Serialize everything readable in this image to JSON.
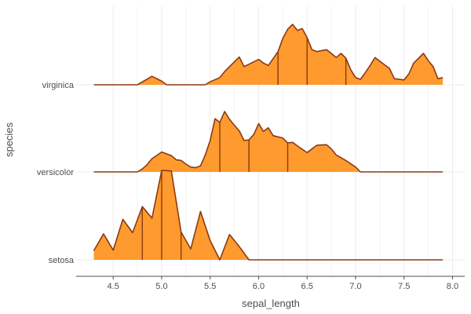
{
  "chart_data": {
    "type": "ridgeline",
    "xlabel": "sepal_length",
    "ylabel": "species",
    "xlim": [
      4.3,
      7.9
    ],
    "x_ticks": [
      "4.5",
      "5.0",
      "5.5",
      "6.0",
      "6.5",
      "7.0",
      "7.5",
      "8.0"
    ],
    "grid": true,
    "colors": {
      "fill": "#ff9a2e",
      "line": "#8b3a12",
      "grid": "#ebebeb",
      "axis": "#4d4d4d"
    },
    "categories": [
      "virginica",
      "versicolor",
      "setosa"
    ],
    "ridges": [
      {
        "name": "virginica",
        "quartiles": [
          6.2,
          6.5,
          6.9
        ],
        "points": [
          [
            4.3,
            0
          ],
          [
            4.75,
            0
          ],
          [
            4.9,
            0.14
          ],
          [
            5.0,
            0.06
          ],
          [
            5.05,
            0
          ],
          [
            5.45,
            0
          ],
          [
            5.5,
            0.05
          ],
          [
            5.6,
            0.12
          ],
          [
            5.65,
            0.22
          ],
          [
            5.75,
            0.38
          ],
          [
            5.8,
            0.46
          ],
          [
            5.85,
            0.3
          ],
          [
            5.9,
            0.34
          ],
          [
            6.0,
            0.42
          ],
          [
            6.05,
            0.36
          ],
          [
            6.1,
            0.32
          ],
          [
            6.2,
            0.55
          ],
          [
            6.25,
            0.77
          ],
          [
            6.3,
            0.92
          ],
          [
            6.35,
            1.0
          ],
          [
            6.4,
            0.9
          ],
          [
            6.45,
            0.93
          ],
          [
            6.5,
            0.78
          ],
          [
            6.55,
            0.58
          ],
          [
            6.6,
            0.55
          ],
          [
            6.7,
            0.58
          ],
          [
            6.75,
            0.52
          ],
          [
            6.8,
            0.45
          ],
          [
            6.85,
            0.52
          ],
          [
            6.9,
            0.44
          ],
          [
            6.95,
            0.25
          ],
          [
            7.0,
            0.12
          ],
          [
            7.05,
            0.09
          ],
          [
            7.1,
            0.2
          ],
          [
            7.15,
            0.32
          ],
          [
            7.2,
            0.45
          ],
          [
            7.3,
            0.33
          ],
          [
            7.35,
            0.27
          ],
          [
            7.4,
            0.1
          ],
          [
            7.5,
            0.08
          ],
          [
            7.55,
            0.18
          ],
          [
            7.6,
            0.36
          ],
          [
            7.7,
            0.52
          ],
          [
            7.75,
            0.4
          ],
          [
            7.8,
            0.3
          ],
          [
            7.85,
            0.1
          ],
          [
            7.9,
            0.12
          ]
        ]
      },
      {
        "name": "versicolor",
        "quartiles": [
          5.6,
          5.9,
          6.3
        ],
        "points": [
          [
            4.3,
            0
          ],
          [
            4.75,
            0
          ],
          [
            4.8,
            0.05
          ],
          [
            4.85,
            0.12
          ],
          [
            4.9,
            0.22
          ],
          [
            5.0,
            0.33
          ],
          [
            5.1,
            0.27
          ],
          [
            5.15,
            0.2
          ],
          [
            5.2,
            0.19
          ],
          [
            5.25,
            0.13
          ],
          [
            5.3,
            0.08
          ],
          [
            5.35,
            0.07
          ],
          [
            5.4,
            0.1
          ],
          [
            5.45,
            0.28
          ],
          [
            5.5,
            0.52
          ],
          [
            5.55,
            0.88
          ],
          [
            5.6,
            0.82
          ],
          [
            5.65,
            1.0
          ],
          [
            5.7,
            0.87
          ],
          [
            5.75,
            0.77
          ],
          [
            5.8,
            0.68
          ],
          [
            5.85,
            0.52
          ],
          [
            5.9,
            0.53
          ],
          [
            5.95,
            0.62
          ],
          [
            6.0,
            0.8
          ],
          [
            6.05,
            0.67
          ],
          [
            6.1,
            0.73
          ],
          [
            6.15,
            0.6
          ],
          [
            6.2,
            0.58
          ],
          [
            6.25,
            0.56
          ],
          [
            6.3,
            0.48
          ],
          [
            6.35,
            0.49
          ],
          [
            6.4,
            0.43
          ],
          [
            6.5,
            0.32
          ],
          [
            6.55,
            0.38
          ],
          [
            6.6,
            0.44
          ],
          [
            6.7,
            0.45
          ],
          [
            6.75,
            0.38
          ],
          [
            6.8,
            0.28
          ],
          [
            6.9,
            0.19
          ],
          [
            7.0,
            0.08
          ],
          [
            7.05,
            0
          ],
          [
            7.9,
            0
          ]
        ]
      },
      {
        "name": "setosa",
        "quartiles": [
          4.8,
          5.0,
          5.2
        ],
        "points": [
          [
            4.3,
            0.15
          ],
          [
            4.4,
            0.43
          ],
          [
            4.5,
            0.16
          ],
          [
            4.6,
            0.67
          ],
          [
            4.7,
            0.45
          ],
          [
            4.8,
            0.88
          ],
          [
            4.9,
            0.69
          ],
          [
            5.0,
            1.48
          ],
          [
            5.1,
            1.47
          ],
          [
            5.2,
            0.46
          ],
          [
            5.3,
            0.18
          ],
          [
            5.4,
            0.8
          ],
          [
            5.5,
            0.32
          ],
          [
            5.6,
            0
          ],
          [
            5.7,
            0.42
          ],
          [
            5.8,
            0.22
          ],
          [
            5.9,
            0
          ],
          [
            7.9,
            0
          ]
        ]
      }
    ]
  }
}
